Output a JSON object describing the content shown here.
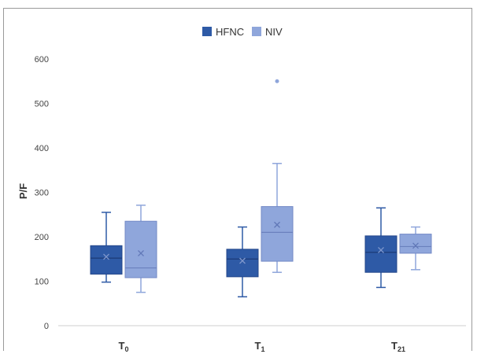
{
  "chart_data": {
    "type": "box",
    "ylabel": "P/F",
    "xlabel": "",
    "ylim": [
      0,
      600
    ],
    "yticks": [
      0,
      100,
      200,
      300,
      400,
      500,
      600
    ],
    "grid": false,
    "legend": {
      "placement": "top-center",
      "entries": [
        "HFNC",
        "NIV"
      ]
    },
    "categories": [
      {
        "main": "T",
        "sub": "0"
      },
      {
        "main": "T",
        "sub": "1"
      },
      {
        "main": "T",
        "sub": "21"
      }
    ],
    "series": [
      {
        "name": "HFNC",
        "color": "#2e5aa6",
        "boxes": [
          {
            "min": 98,
            "q1": 116,
            "median": 152,
            "q3": 180,
            "max": 255,
            "mean": 155,
            "outliers": []
          },
          {
            "min": 65,
            "q1": 110,
            "median": 150,
            "q3": 172,
            "max": 222,
            "mean": 146,
            "outliers": []
          },
          {
            "min": 86,
            "q1": 120,
            "median": 165,
            "q3": 202,
            "max": 265,
            "mean": 170,
            "outliers": []
          }
        ]
      },
      {
        "name": "NIV",
        "color": "#8fa6db",
        "boxes": [
          {
            "min": 75,
            "q1": 108,
            "median": 130,
            "q3": 235,
            "max": 271,
            "mean": 163,
            "outliers": []
          },
          {
            "min": 120,
            "q1": 145,
            "median": 210,
            "q3": 268,
            "max": 365,
            "mean": 227,
            "outliers": [
              550
            ]
          },
          {
            "min": 126,
            "q1": 163,
            "median": 178,
            "q3": 206,
            "max": 222,
            "mean": 180,
            "outliers": []
          }
        ]
      }
    ]
  }
}
